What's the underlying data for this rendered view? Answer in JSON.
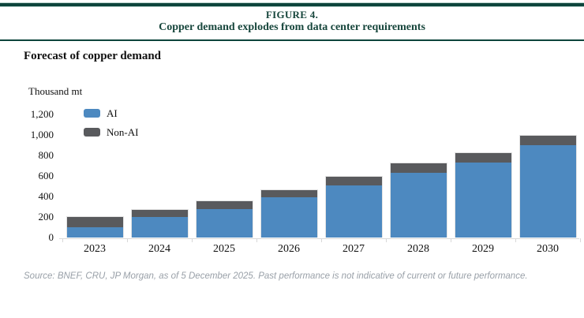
{
  "figure": {
    "label": "FIGURE 4.",
    "title": "Copper demand explodes from data center requirements"
  },
  "subtitle": "Forecast of copper demand",
  "footer": "Source: BNEF, CRU, JP Morgan, as of 5 December 2025. Past performance is not indicative of current or future performance.",
  "colors": {
    "ai_blue": "#4d89c0",
    "non_ai_gray": "#595a5d",
    "rule_green": "#0d453c",
    "title_green": "#17463c",
    "axis_gray": "#d8d8d8",
    "footer_gray": "#99a0a8"
  },
  "chart_data": {
    "type": "bar",
    "stacked": true,
    "title": "Forecast of copper demand",
    "ylabel": "Thousand mt",
    "xlabel": "",
    "categories": [
      "2023",
      "2024",
      "2025",
      "2026",
      "2027",
      "2028",
      "2029",
      "2030"
    ],
    "series": [
      {
        "name": "AI",
        "color_key": "ai_blue",
        "values": [
          100,
          200,
          280,
          390,
          510,
          630,
          730,
          900
        ]
      },
      {
        "name": "Non-AI",
        "color_key": "non_ai_gray",
        "values": [
          110,
          80,
          80,
          80,
          90,
          100,
          100,
          100
        ]
      }
    ],
    "totals": [
      210,
      280,
      360,
      470,
      600,
      730,
      830,
      1000
    ],
    "ylim": [
      0,
      1200
    ],
    "ytick_step": 200,
    "ytick_labels": [
      "0",
      "200",
      "400",
      "600",
      "800",
      "1,000",
      "1,200"
    ],
    "grid": false,
    "legend_position": "top-left"
  }
}
